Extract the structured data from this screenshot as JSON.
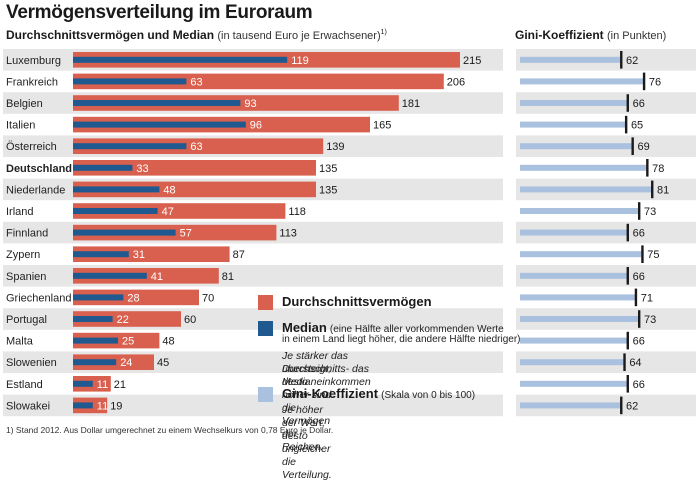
{
  "header": {
    "title": "Vermögensverteilung im Euroraum",
    "left_heading": "Durchschnittsvermögen und Median",
    "left_heading_note": "(in tausend Euro je Erwachsener)",
    "left_heading_sup": "1)",
    "right_heading": "Gini-Koeffizient",
    "right_heading_note": "(in Punkten)"
  },
  "colors": {
    "mean_bar": "#d9604e",
    "median_bar": "#20598f",
    "gini_bar": "#a9c1de",
    "gini_marker": "#1a1a1a",
    "row_stripe": "#e6e6e6"
  },
  "chart_data": {
    "type": "bar",
    "categories": [
      "Luxemburg",
      "Frankreich",
      "Belgien",
      "Italien",
      "Österreich",
      "Deutschland",
      "Niederlande",
      "Irland",
      "Finnland",
      "Zypern",
      "Spanien",
      "Griechenland",
      "Portugal",
      "Malta",
      "Slowenien",
      "Estland",
      "Slowakei"
    ],
    "highlight_category": "Deutschland",
    "series": [
      {
        "name": "Durchschnittsvermögen",
        "values": [
          215,
          206,
          181,
          165,
          139,
          135,
          135,
          118,
          113,
          87,
          81,
          70,
          60,
          48,
          45,
          21,
          19
        ]
      },
      {
        "name": "Median",
        "values": [
          119,
          63,
          93,
          96,
          63,
          33,
          48,
          47,
          57,
          31,
          41,
          28,
          22,
          25,
          24,
          11,
          11
        ]
      },
      {
        "name": "Gini-Koeffizient",
        "values": [
          62,
          76,
          66,
          65,
          69,
          78,
          81,
          73,
          66,
          75,
          66,
          71,
          73,
          66,
          64,
          66,
          62
        ]
      }
    ],
    "gini_scale": [
      0,
      100
    ]
  },
  "legend": {
    "mean_label": "Durchschnittsvermögen",
    "median_label": "Median",
    "median_note_line1": "(eine Hälfte aller vorkommenden Werte",
    "median_note_line2": "in einem Land liegt höher, die andere Hälfte niedriger)",
    "median_desc_line1": "Je stärker das Durchschnitts- das Medianeinkommen",
    "median_desc_line2": "übersteigt, desto höher sind die Vermögen der Reichen.",
    "gini_label": "Gini-Koeffizient",
    "gini_note": "(Skala von 0 bis 100)",
    "gini_desc": "Je  höher der Wert, desto ungleicher die Verteilung."
  },
  "footnote": "1) Stand 2012. Aus Dollar umgerechnet zu einem Wechselkurs von 0,78 Euro je Dollar."
}
